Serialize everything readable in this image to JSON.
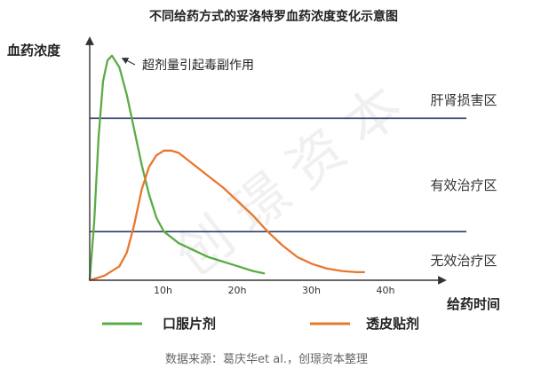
{
  "chart_data": {
    "type": "line",
    "title": "不同给药方式的妥洛特罗血药浓度变化示意图",
    "ylabel": "血药浓度",
    "xlabel": "给药时间",
    "x_ticks": [
      "10h",
      "20h",
      "30h",
      "40h"
    ],
    "xlim": [
      0,
      48
    ],
    "ylim": [
      0,
      1
    ],
    "thresholds": [
      {
        "name": "肝肾损害区",
        "y": 0.7
      },
      {
        "name": "有效治疗区",
        "y": 0.21
      }
    ],
    "zone_labels": [
      "肝肾损害区",
      "有效治疗区",
      "无效治疗区"
    ],
    "series": [
      {
        "name": "口服片剂",
        "color": "#5aac44",
        "x": [
          0,
          0.6,
          1.2,
          1.8,
          2.4,
          3,
          4,
          5,
          6,
          7,
          8,
          9,
          10,
          12,
          14,
          16,
          18,
          20,
          22,
          23.5
        ],
        "y": [
          0,
          0.25,
          0.62,
          0.86,
          0.95,
          0.97,
          0.92,
          0.8,
          0.65,
          0.5,
          0.37,
          0.27,
          0.21,
          0.16,
          0.13,
          0.1,
          0.08,
          0.06,
          0.04,
          0.03
        ]
      },
      {
        "name": "透皮贴剂",
        "color": "#e8772e",
        "x": [
          0,
          2,
          4,
          5,
          6,
          7,
          8,
          9,
          10,
          11,
          12,
          14,
          16,
          18,
          20,
          22,
          24,
          26,
          28,
          30,
          32,
          34,
          36,
          37
        ],
        "y": [
          0,
          0.02,
          0.06,
          0.12,
          0.24,
          0.39,
          0.49,
          0.54,
          0.56,
          0.56,
          0.55,
          0.5,
          0.45,
          0.4,
          0.34,
          0.28,
          0.21,
          0.15,
          0.1,
          0.07,
          0.05,
          0.04,
          0.035,
          0.035
        ]
      }
    ],
    "annotation": "超剂量引起毒副作用",
    "axis_color": "#333333",
    "threshold_color": "#2e3a66"
  },
  "source": "数据来源：葛庆华et al.，创璟资本整理",
  "watermark": "创璟资本"
}
